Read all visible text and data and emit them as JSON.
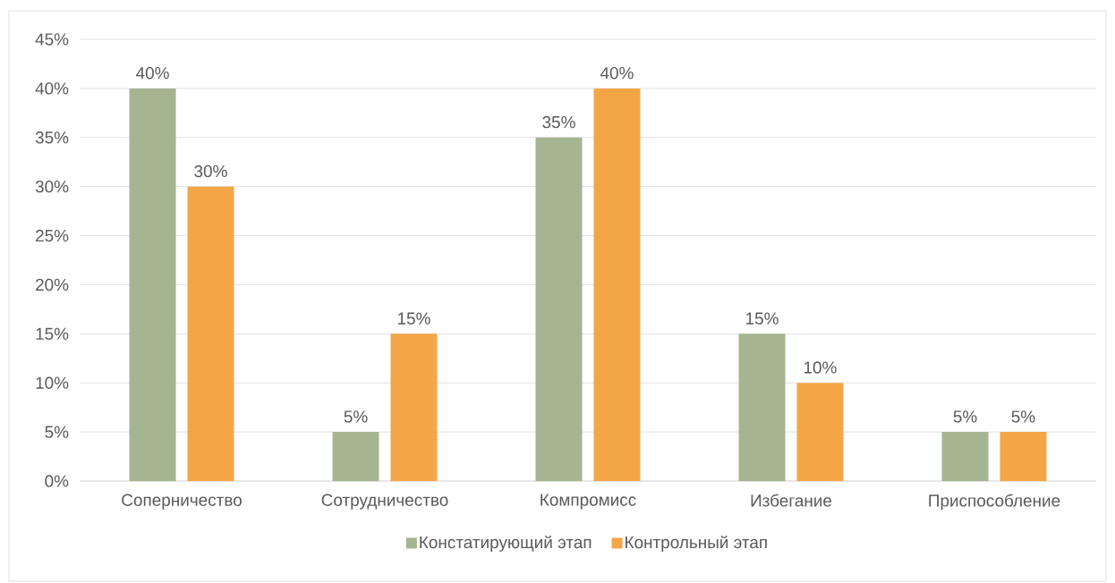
{
  "chart_data": {
    "type": "bar",
    "categories": [
      "Соперничество",
      "Сотрудничество",
      "Компромисс",
      "Избегание",
      "Приспособление"
    ],
    "series": [
      {
        "name": "Констатирующий этап",
        "color": "#a5b592",
        "values": [
          40,
          5,
          35,
          15,
          5
        ],
        "value_labels": [
          "40%",
          "5%",
          "35%",
          "15%",
          "5%"
        ]
      },
      {
        "name": "Контрольный этап",
        "color": "#f4a647",
        "values": [
          30,
          15,
          40,
          10,
          5
        ],
        "value_labels": [
          "30%",
          "15%",
          "40%",
          "10%",
          "5%"
        ]
      }
    ],
    "ylim": [
      0,
      45
    ],
    "yticks": [
      {
        "value": 0,
        "label": "0%"
      },
      {
        "value": 5,
        "label": "5%"
      },
      {
        "value": 10,
        "label": "10%"
      },
      {
        "value": 15,
        "label": "15%"
      },
      {
        "value": 20,
        "label": "20%"
      },
      {
        "value": 25,
        "label": "25%"
      },
      {
        "value": 30,
        "label": "30%"
      },
      {
        "value": 35,
        "label": "35%"
      },
      {
        "value": 40,
        "label": "40%"
      },
      {
        "value": 45,
        "label": "45%"
      }
    ],
    "grid": "y",
    "legend": "bottom"
  }
}
